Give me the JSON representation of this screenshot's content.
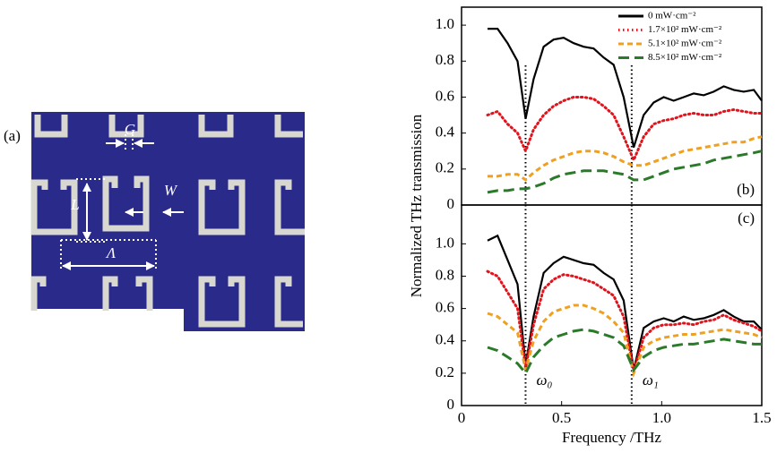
{
  "chart_data": [
    {
      "type": "line",
      "panel_label": "(b)",
      "ylabel": "Normalized THz transmission",
      "xlim": [
        0,
        1.5
      ],
      "ylim": [
        0,
        1.1
      ],
      "yticks": [
        0,
        0.2,
        0.4,
        0.6,
        0.8,
        {
          "value": 1,
          "label": "1.0"
        }
      ],
      "legend": "upper right",
      "vlines": [
        0.32,
        0.85
      ],
      "x": [
        0.13,
        0.18,
        0.23,
        0.28,
        0.32,
        0.36,
        0.41,
        0.46,
        0.51,
        0.56,
        0.61,
        0.66,
        0.71,
        0.76,
        0.81,
        0.86,
        0.91,
        0.96,
        1.01,
        1.06,
        1.11,
        1.16,
        1.21,
        1.26,
        1.31,
        1.36,
        1.41,
        1.46,
        1.5
      ],
      "series": [
        {
          "name": "0 mW·cm⁻²",
          "color": "#000000",
          "style": "solid",
          "values": [
            0.98,
            0.98,
            0.9,
            0.8,
            0.48,
            0.7,
            0.88,
            0.92,
            0.93,
            0.9,
            0.88,
            0.87,
            0.82,
            0.78,
            0.6,
            0.32,
            0.5,
            0.57,
            0.6,
            0.58,
            0.6,
            0.62,
            0.61,
            0.63,
            0.66,
            0.64,
            0.63,
            0.64,
            0.58
          ]
        },
        {
          "name": "1.7×10² mW·cm⁻²",
          "color": "#e0141c",
          "style": "dotted",
          "values": [
            0.5,
            0.52,
            0.45,
            0.4,
            0.3,
            0.42,
            0.5,
            0.55,
            0.58,
            0.6,
            0.6,
            0.59,
            0.55,
            0.5,
            0.38,
            0.25,
            0.38,
            0.45,
            0.47,
            0.48,
            0.5,
            0.51,
            0.5,
            0.5,
            0.52,
            0.53,
            0.52,
            0.51,
            0.51
          ]
        },
        {
          "name": "5.1×10² mW·cm⁻²",
          "color": "#f0a020",
          "style": "dashed",
          "values": [
            0.16,
            0.16,
            0.17,
            0.17,
            0.14,
            0.18,
            0.22,
            0.25,
            0.27,
            0.29,
            0.3,
            0.3,
            0.29,
            0.27,
            0.24,
            0.22,
            0.22,
            0.24,
            0.26,
            0.28,
            0.3,
            0.31,
            0.32,
            0.33,
            0.34,
            0.35,
            0.35,
            0.37,
            0.38
          ]
        },
        {
          "name": "8.5×10² mW·cm⁻²",
          "color": "#2a7a2a",
          "style": "longdash",
          "values": [
            0.07,
            0.08,
            0.08,
            0.09,
            0.09,
            0.1,
            0.12,
            0.15,
            0.17,
            0.18,
            0.19,
            0.19,
            0.19,
            0.18,
            0.17,
            0.14,
            0.14,
            0.16,
            0.18,
            0.2,
            0.21,
            0.22,
            0.23,
            0.25,
            0.26,
            0.27,
            0.28,
            0.29,
            0.3
          ]
        }
      ]
    },
    {
      "type": "line",
      "panel_label": "(c)",
      "xlabel": "Frequency /THz",
      "xlim": [
        0,
        1.5
      ],
      "ylim": [
        0,
        1.24
      ],
      "xticks": [
        0,
        0.5,
        {
          "value": 1,
          "label": "1.0"
        },
        1.5
      ],
      "yticks": [
        0,
        0.2,
        0.4,
        0.6,
        0.8,
        {
          "value": 1,
          "label": "1.0"
        }
      ],
      "vlines": [
        0.32,
        0.85
      ],
      "annotations": [
        "ω₀",
        "ω₁"
      ],
      "x": [
        0.13,
        0.18,
        0.23,
        0.28,
        0.32,
        0.36,
        0.41,
        0.46,
        0.51,
        0.56,
        0.61,
        0.66,
        0.71,
        0.76,
        0.81,
        0.86,
        0.91,
        0.96,
        1.01,
        1.06,
        1.11,
        1.16,
        1.21,
        1.26,
        1.31,
        1.36,
        1.41,
        1.46,
        1.5
      ],
      "series": [
        {
          "name": "0 mW·cm⁻²",
          "color": "#000000",
          "style": "solid",
          "values": [
            1.02,
            1.05,
            0.9,
            0.75,
            0.25,
            0.55,
            0.82,
            0.88,
            0.92,
            0.9,
            0.88,
            0.87,
            0.82,
            0.78,
            0.65,
            0.22,
            0.48,
            0.52,
            0.54,
            0.52,
            0.55,
            0.53,
            0.54,
            0.56,
            0.59,
            0.55,
            0.52,
            0.52,
            0.47
          ]
        },
        {
          "name": "1.7×10² mW·cm⁻²",
          "color": "#e0141c",
          "style": "dotted",
          "values": [
            0.83,
            0.8,
            0.7,
            0.6,
            0.23,
            0.5,
            0.72,
            0.78,
            0.81,
            0.8,
            0.78,
            0.76,
            0.72,
            0.68,
            0.55,
            0.21,
            0.42,
            0.48,
            0.5,
            0.5,
            0.51,
            0.5,
            0.52,
            0.53,
            0.56,
            0.53,
            0.51,
            0.49,
            0.46
          ]
        },
        {
          "name": "5.1×10² mW·cm⁻²",
          "color": "#f0a020",
          "style": "dashed",
          "values": [
            0.57,
            0.55,
            0.5,
            0.45,
            0.22,
            0.4,
            0.52,
            0.58,
            0.6,
            0.62,
            0.62,
            0.6,
            0.57,
            0.52,
            0.45,
            0.2,
            0.36,
            0.4,
            0.42,
            0.43,
            0.44,
            0.44,
            0.45,
            0.46,
            0.47,
            0.46,
            0.45,
            0.44,
            0.42
          ]
        },
        {
          "name": "8.5×10² mW·cm⁻²",
          "color": "#2a7a2a",
          "style": "longdash",
          "values": [
            0.36,
            0.34,
            0.3,
            0.26,
            0.2,
            0.3,
            0.37,
            0.42,
            0.44,
            0.46,
            0.47,
            0.46,
            0.44,
            0.42,
            0.37,
            0.22,
            0.3,
            0.34,
            0.36,
            0.37,
            0.38,
            0.38,
            0.39,
            0.4,
            0.41,
            0.4,
            0.39,
            0.38,
            0.38
          ]
        }
      ]
    }
  ],
  "figure_a": {
    "label": "(a)",
    "dims": [
      "G",
      "W",
      "L",
      "Λ"
    ]
  }
}
